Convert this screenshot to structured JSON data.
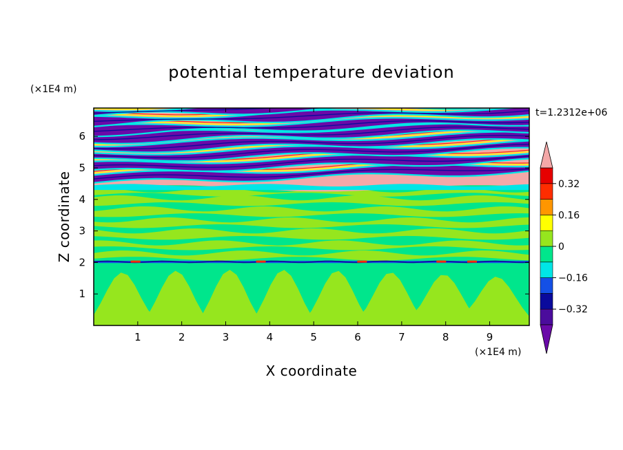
{
  "chart_data": {
    "type": "heatmap",
    "title": "potential temperature deviation",
    "xlabel": "X coordinate",
    "ylabel": "Z coordinate",
    "x_unit": "(×1E4 m)",
    "y_unit": "(×1E4 m)",
    "time_label": "t=1.2312e+06",
    "xlim": [
      0,
      9.9
    ],
    "ylim": [
      0,
      6.9
    ],
    "x_ticks": [
      1,
      2,
      3,
      4,
      5,
      6,
      7,
      8,
      9
    ],
    "y_ticks": [
      1,
      2,
      3,
      4,
      5,
      6
    ],
    "colorbar": {
      "levels": [
        -0.4,
        -0.32,
        -0.24,
        -0.16,
        -0.08,
        0,
        0.08,
        0.16,
        0.24,
        0.32,
        0.4
      ],
      "tick_labels": [
        "0.32",
        "0.16",
        "0",
        "−0.16",
        "−0.32"
      ],
      "tick_values": [
        0.32,
        0.16,
        0,
        -0.16,
        -0.32
      ],
      "colors": [
        "#4b0c9c",
        "#0a0a9c",
        "#1450e6",
        "#00e6e6",
        "#00e68c",
        "#96e61e",
        "#ffff00",
        "#ff9600",
        "#ff2d00",
        "#e60000"
      ],
      "over_color": "#f4a8a8",
      "under_color": "#6a0aa8",
      "extend": "both"
    },
    "field_description": [
      {
        "z_range": [
          4.5,
          6.9
        ],
        "pattern": "alternating positive (pink, > 0.4) and negative (purple, < -0.4) inclined layers"
      },
      {
        "z_range": [
          2.05,
          4.5
        ],
        "pattern": "weak deviations between -0.08 and 0.08 (green / light green bands)"
      },
      {
        "z_range": [
          0,
          2.0
        ],
        "pattern": "weak deviations between -0.08 and 0.08 with convective plume structures"
      },
      {
        "z_range": [
          2.0,
          2.05
        ],
        "pattern": "thin strong-deviation layer near z = 2"
      }
    ]
  }
}
